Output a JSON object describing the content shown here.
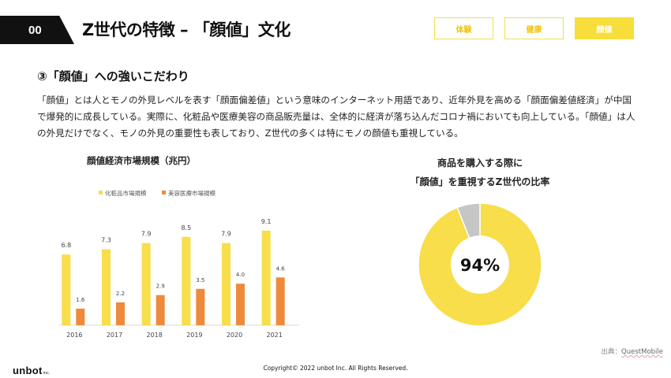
{
  "header": {
    "number": "00",
    "title": "Z世代の特徴 – 「顔値」文化",
    "tabs": [
      {
        "label": "体験",
        "active": false
      },
      {
        "label": "健康",
        "active": false
      },
      {
        "label": "顔値",
        "active": true
      }
    ]
  },
  "section": {
    "title": "③「顔値」への強いこだわり",
    "body": "「顔値」とは人とモノの外見レベルを表す「顔面偏差値」という意味のインターネット用語であり、近年外見を高める「顔面偏差値経済」が中国で爆発的に成長している。実際に、化粧品や医療美容の商品販売量は、全体的に経済が落ち込んだコロナ禍においても向上している。「顔値」は人の外見だけでなく、モノの外見の重要性も表しており、Z世代の多くは特にモノの顔値も重視している。"
  },
  "chart_data": [
    {
      "type": "bar",
      "title": "顔値経済市場規模（兆円）",
      "categories": [
        "2016",
        "2017",
        "2018",
        "2019",
        "2020",
        "2021"
      ],
      "series": [
        {
          "name": "化粧品市場規模",
          "values": [
            6.8,
            7.3,
            7.9,
            8.5,
            7.9,
            9.1
          ],
          "color": "#f7de4a"
        },
        {
          "name": "美容医療市場規模",
          "values": [
            1.6,
            2.2,
            2.9,
            3.5,
            4.0,
            4.6
          ],
          "color": "#ee8a3c"
        }
      ],
      "ylim": [
        0,
        10
      ],
      "legend": "top"
    },
    {
      "type": "pie",
      "title_lines": [
        "商品を購入する際に",
        "「顔値」を重視するZ世代の比率"
      ],
      "values": [
        94,
        6
      ],
      "colors": [
        "#f7de4a",
        "#c6c6c6"
      ],
      "center_label": "94%"
    }
  ],
  "footer": {
    "source_label": "出典：",
    "source_name": "QuestMobile",
    "logo": "unbot",
    "logo_sub": "inc.",
    "copyright": "Copyright© 2022 unbot Inc.  All Rights Reserved."
  }
}
